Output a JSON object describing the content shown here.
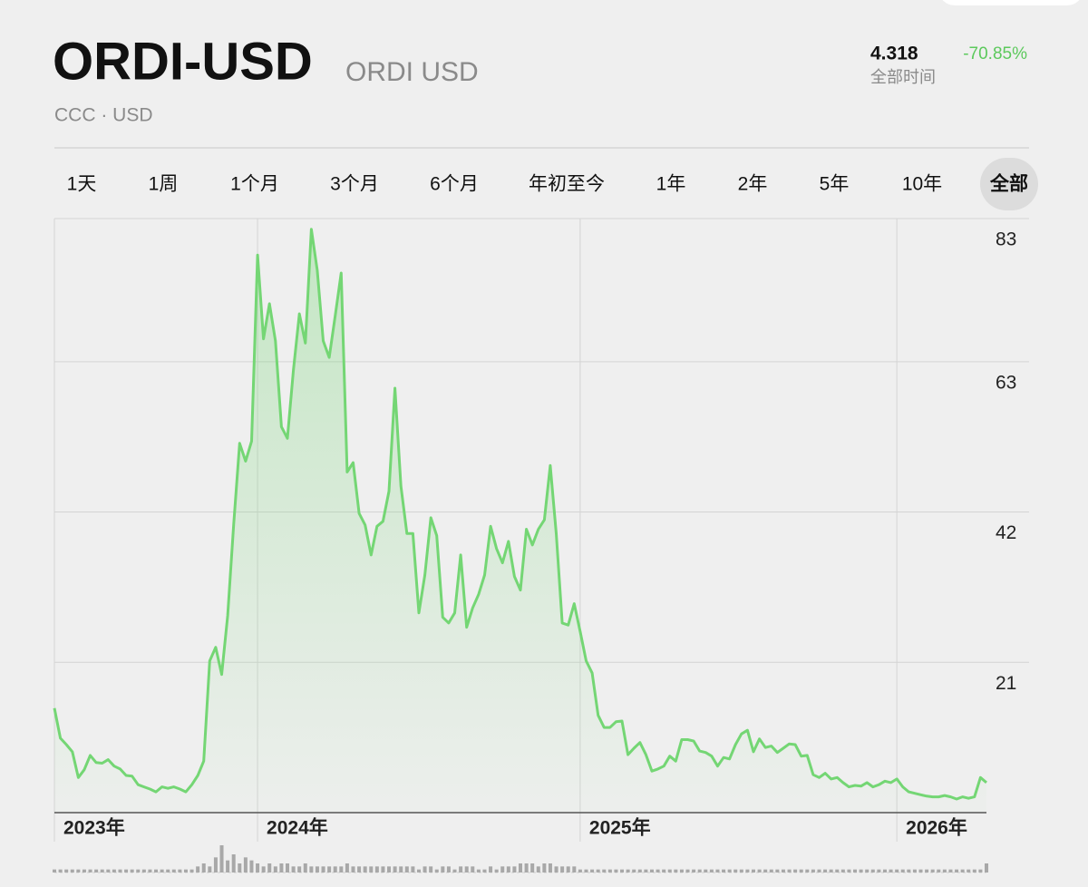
{
  "header": {
    "symbol": "ORDI-USD",
    "name": "ORDI USD",
    "exchange": "CCC · USD",
    "price": "4.318",
    "change": "-70.85%",
    "range_label": "全部时间"
  },
  "tabs": [
    "1天",
    "1周",
    "1个月",
    "3个月",
    "6个月",
    "年初至今",
    "1年",
    "2年",
    "5年",
    "10年",
    "全部"
  ],
  "selected_tab": 10,
  "chart_data": {
    "type": "line",
    "color": "#74d674",
    "values": [
      14.6,
      10.4,
      9.5,
      8.5,
      4.9,
      6.0,
      8.0,
      7.0,
      6.9,
      7.4,
      6.5,
      6.1,
      5.2,
      5.1,
      3.9,
      3.6,
      3.3,
      2.9,
      3.6,
      3.4,
      3.6,
      3.3,
      2.9,
      3.9,
      5.2,
      7.2,
      21.2,
      23.1,
      19.3,
      27.5,
      40.2,
      51.6,
      49.1,
      51.9,
      77.9,
      66.2,
      71.1,
      65.9,
      53.9,
      52.3,
      61.8,
      69.7,
      65.6,
      81.5,
      75.8,
      65.9,
      63.6,
      69.4,
      75.4,
      47.6,
      48.9,
      41.8,
      40.2,
      36.0,
      40.0,
      40.7,
      44.9,
      59.3,
      45.6,
      39.0,
      39.0,
      27.9,
      33.2,
      41.2,
      38.7,
      27.3,
      26.5,
      27.9,
      36.0,
      25.9,
      28.6,
      30.5,
      33.2,
      40.0,
      36.9,
      34.9,
      37.9,
      33.0,
      31.1,
      39.6,
      37.4,
      39.6,
      40.9,
      48.5,
      39.0,
      26.5,
      26.2,
      29.2,
      25.3,
      21.2,
      19.5,
      13.6,
      11.9,
      11.9,
      12.7,
      12.8,
      8.1,
      9.0,
      9.8,
      8.1,
      5.8,
      6.1,
      6.5,
      7.9,
      7.2,
      10.2,
      10.2,
      10.0,
      8.6,
      8.4,
      7.9,
      6.5,
      7.7,
      7.5,
      9.5,
      11.0,
      11.5,
      8.5,
      10.3,
      9.1,
      9.3,
      8.4,
      9.0,
      9.6,
      9.5,
      7.9,
      8.0,
      5.3,
      4.9,
      5.5,
      4.7,
      4.9,
      4.2,
      3.6,
      3.8,
      3.7,
      4.2,
      3.6,
      3.9,
      4.4,
      4.2,
      4.7,
      3.6,
      2.9,
      2.7,
      2.5,
      2.3,
      2.2,
      2.2,
      2.4,
      2.2,
      1.9,
      2.2,
      2.0,
      2.2,
      4.9,
      4.2
    ],
    "volume": [
      1,
      1,
      1,
      1,
      1,
      1,
      1,
      1,
      1,
      1,
      1,
      1,
      1,
      1,
      1,
      1,
      1,
      1,
      1,
      1,
      1,
      1,
      1,
      1,
      2,
      3,
      2,
      5,
      9,
      4,
      6,
      3,
      5,
      4,
      3,
      2,
      3,
      2,
      3,
      3,
      2,
      2,
      3,
      2,
      2,
      2,
      2,
      2,
      2,
      3,
      2,
      2,
      2,
      2,
      2,
      2,
      2,
      2,
      2,
      2,
      2,
      1,
      2,
      2,
      1,
      2,
      2,
      1,
      2,
      2,
      2,
      1,
      1,
      2,
      1,
      2,
      2,
      2,
      3,
      3,
      3,
      2,
      3,
      3,
      2,
      2,
      2,
      2,
      1,
      1,
      1,
      1,
      1,
      1,
      1,
      1,
      1,
      1,
      1,
      1,
      1,
      1,
      1,
      1,
      1,
      1,
      1,
      1,
      1,
      1,
      1,
      1,
      1,
      1,
      1,
      1,
      1,
      1,
      1,
      1,
      1,
      1,
      1,
      1,
      1,
      1,
      1,
      1,
      1,
      1,
      1,
      1,
      1,
      1,
      1,
      1,
      1,
      1,
      1,
      1,
      1,
      1,
      1,
      1,
      1,
      1,
      1,
      1,
      1,
      1,
      1,
      1,
      1,
      1,
      1,
      1,
      3
    ],
    "xlim": [
      0,
      156
    ],
    "xticks": [
      {
        "value": 0,
        "label": "2023年"
      },
      {
        "value": 34,
        "label": "2024年"
      },
      {
        "value": 88,
        "label": "2025年"
      },
      {
        "value": 141,
        "label": "2026年"
      }
    ],
    "ylim": [
      0,
      83
    ],
    "yticks": [
      21,
      42,
      63,
      83
    ],
    "grid": true
  }
}
